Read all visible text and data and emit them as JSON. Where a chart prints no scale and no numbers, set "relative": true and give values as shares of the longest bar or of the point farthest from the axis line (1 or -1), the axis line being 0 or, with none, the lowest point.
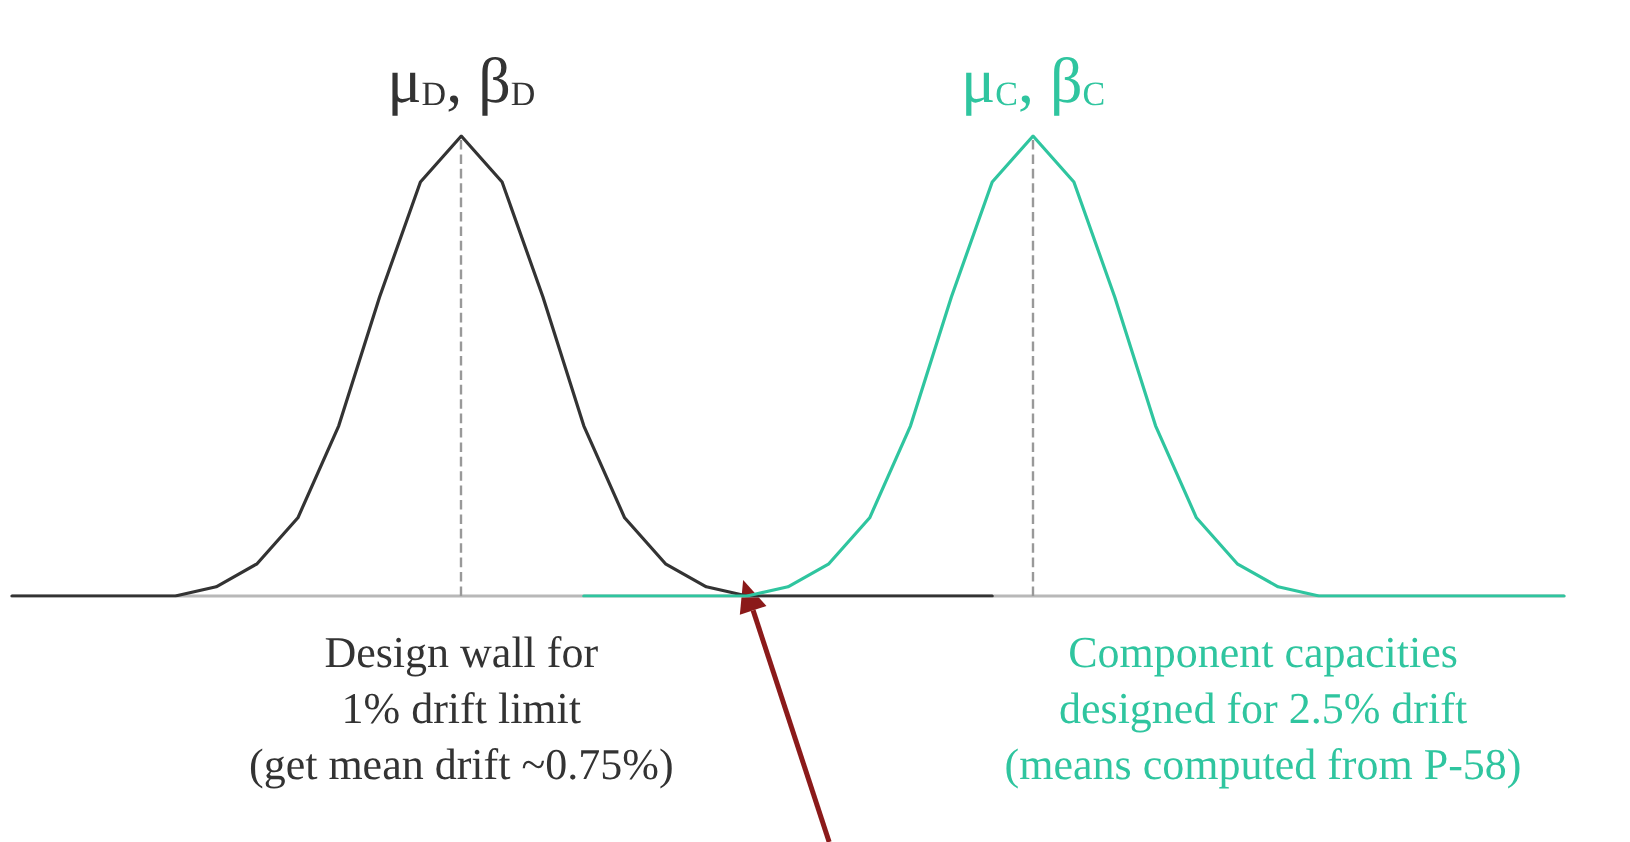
{
  "chart_data": {
    "type": "line",
    "relative": true,
    "marker": "none",
    "line_style": "solid",
    "categories": [
      null,
      null,
      null,
      null,
      null,
      null,
      null,
      null,
      null,
      null,
      null,
      null,
      null,
      null,
      null,
      null,
      null,
      null,
      null,
      null,
      null,
      null,
      null,
      null,
      null,
      null,
      null,
      null,
      null,
      null,
      null,
      null,
      null,
      null,
      null,
      null,
      null,
      null,
      null
    ],
    "series": [
      {
        "color": "#333333",
        "values": [
          0,
          0,
          0,
          0,
          0,
          0.02,
          0.07,
          0.17,
          0.37,
          0.65,
          0.9,
          1,
          0.9,
          0.65,
          0.37,
          0.17,
          0.07,
          0.02,
          0,
          0,
          0,
          0,
          0,
          0,
          0,
          null,
          null,
          null,
          null,
          null,
          null,
          null,
          null,
          null,
          null,
          null,
          null,
          null,
          null
        ]
      },
      {
        "color": "#2fc59f",
        "values": [
          null,
          null,
          null,
          null,
          null,
          null,
          null,
          null,
          null,
          null,
          null,
          null,
          null,
          null,
          0,
          0,
          0,
          0,
          0,
          0.02,
          0.07,
          0.17,
          0.37,
          0.65,
          0.9,
          1,
          0.9,
          0.65,
          0.37,
          0.17,
          0.07,
          0.02,
          0,
          0,
          0,
          0,
          0,
          0,
          0
        ]
      }
    ],
    "ref_lines": [
      {
        "axis": "x",
        "color": "#999999",
        "line_style": "dashed"
      },
      {
        "axis": "x",
        "color": "#999999",
        "line_style": "dashed"
      }
    ],
    "annotations": [
      "μ$_{D}$, β$_{D}$",
      "μ$_{C}$, β$_{C}$",
      "Design wall for\n1% drift limit\n(get mean drift ~0.75%)",
      "Component capacities\ndesigned for 2.5% drift\n(means computed from P-58)"
    ]
  }
}
